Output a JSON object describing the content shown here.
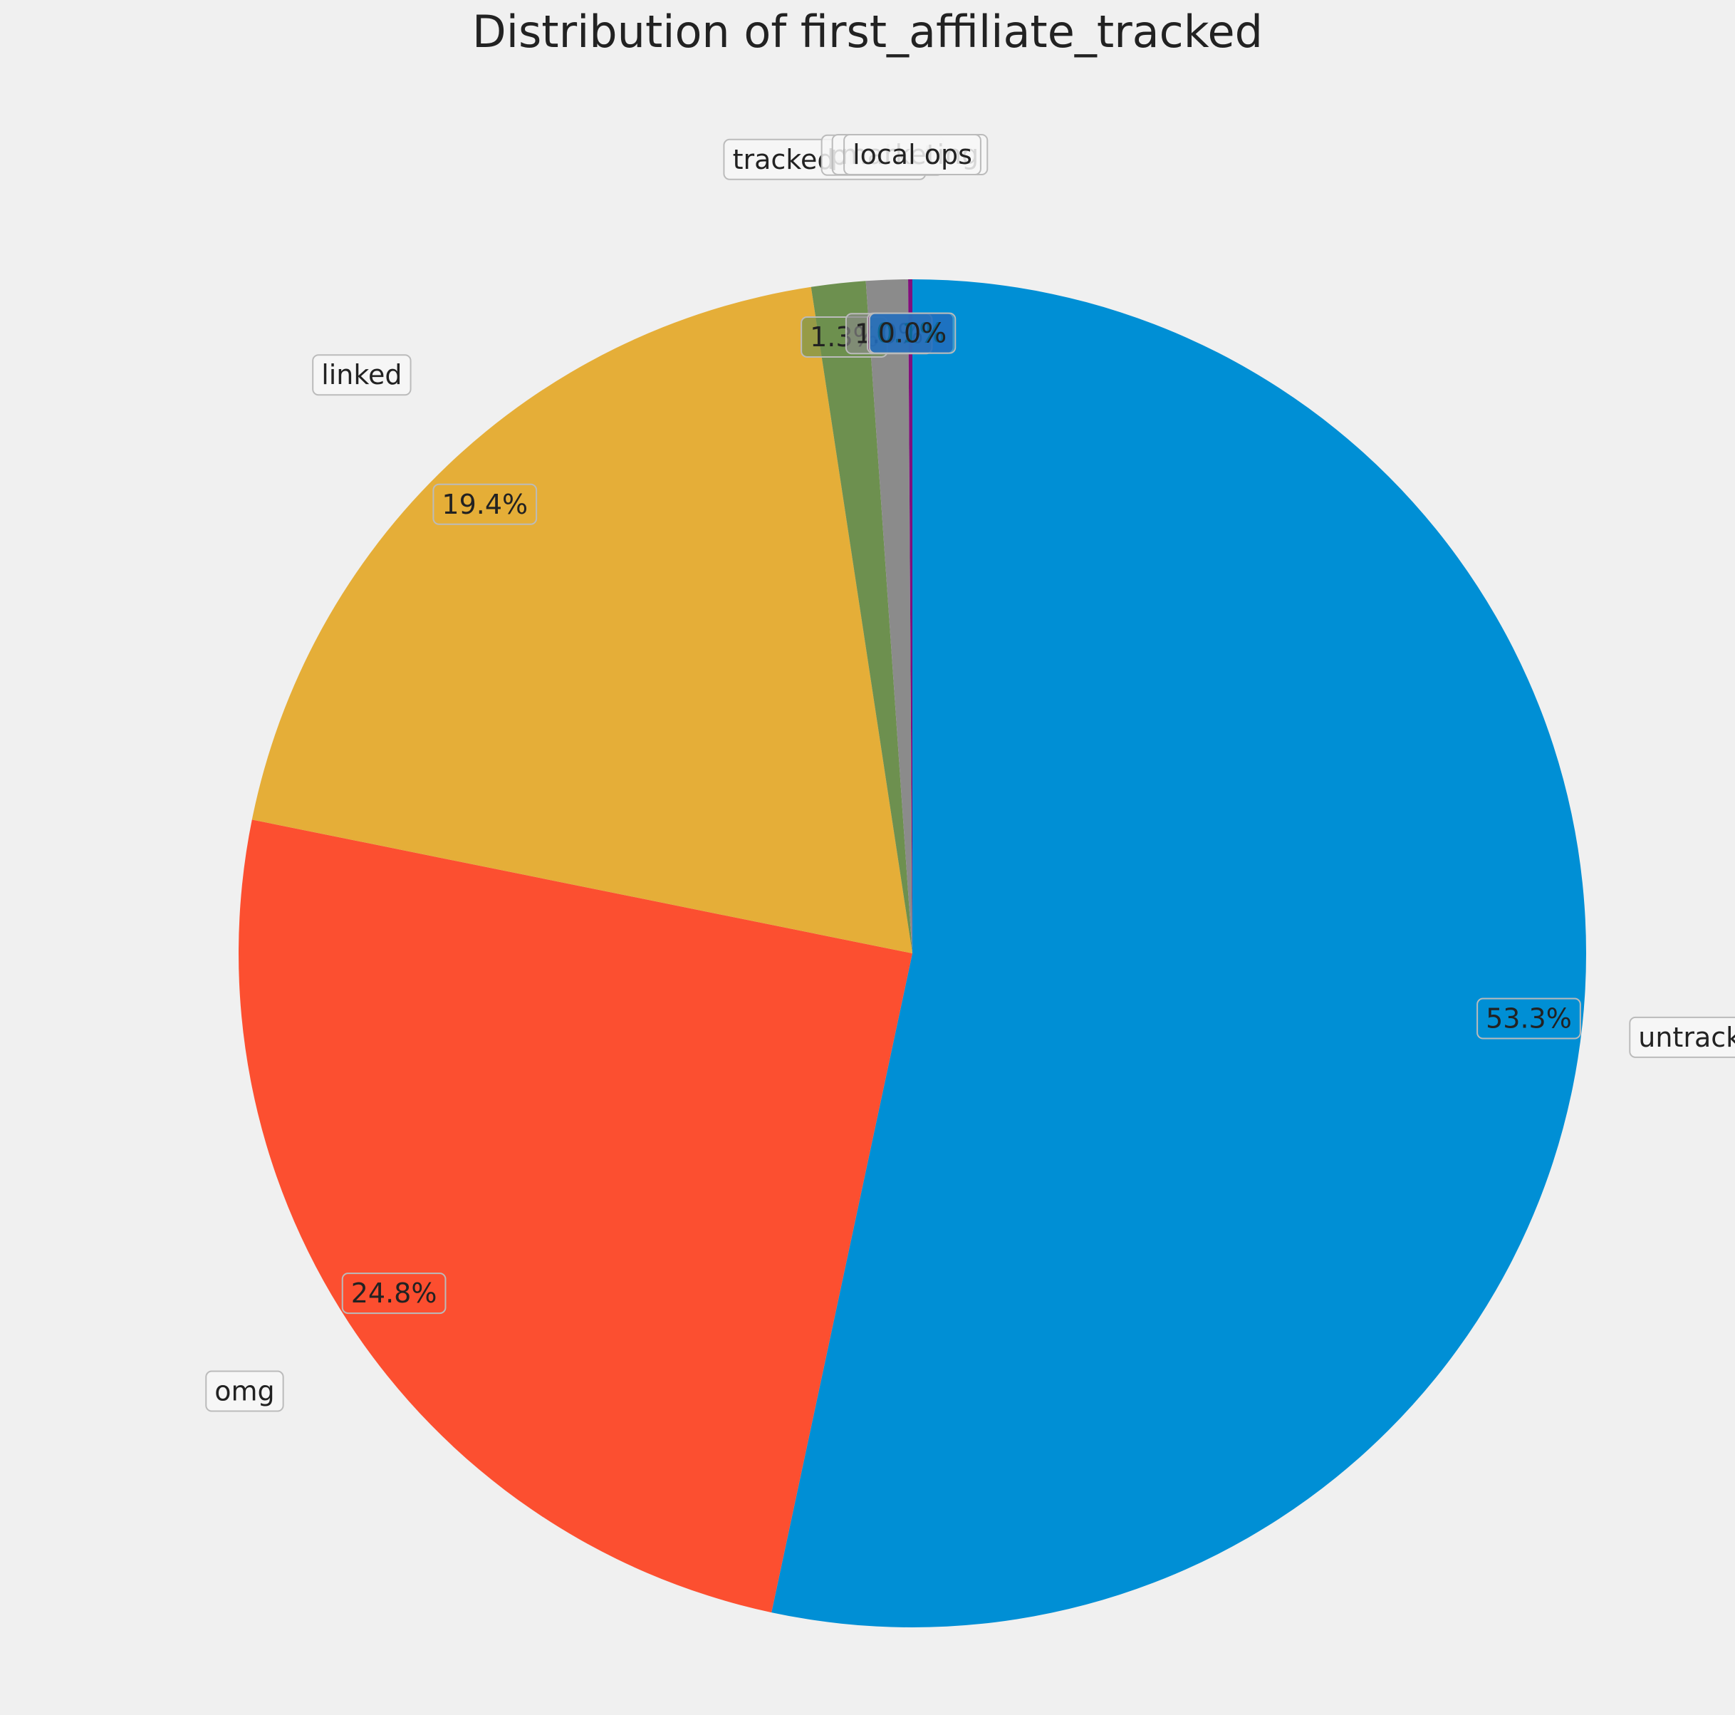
{
  "chart_data": {
    "type": "pie",
    "title": "Distribution of first_affiliate_tracked",
    "start_angle_deg": 90,
    "direction": "clockwise",
    "slices": [
      {
        "label": "untracked",
        "value": 53.3,
        "pct_label": "53.3%",
        "color": "#008fd5"
      },
      {
        "label": "omg",
        "value": 24.8,
        "pct_label": "24.8%",
        "color": "#fc4f30"
      },
      {
        "label": "linked",
        "value": 19.4,
        "pct_label": "19.4%",
        "color": "#e5ae38"
      },
      {
        "label": "tracked-other",
        "value": 1.3,
        "pct_label": "1.3%",
        "color": "#6d904f"
      },
      {
        "label": "product",
        "value": 1.0,
        "pct_label": "1.0%",
        "color": "#8b8b8b"
      },
      {
        "label": "marketing",
        "value": 0.1,
        "pct_label": "0.1%",
        "color": "#810f7c"
      },
      {
        "label": "local ops",
        "value": 0.0,
        "pct_label": "0.0%",
        "color": "#008fd5"
      }
    ],
    "legend": "none",
    "grid": false
  }
}
